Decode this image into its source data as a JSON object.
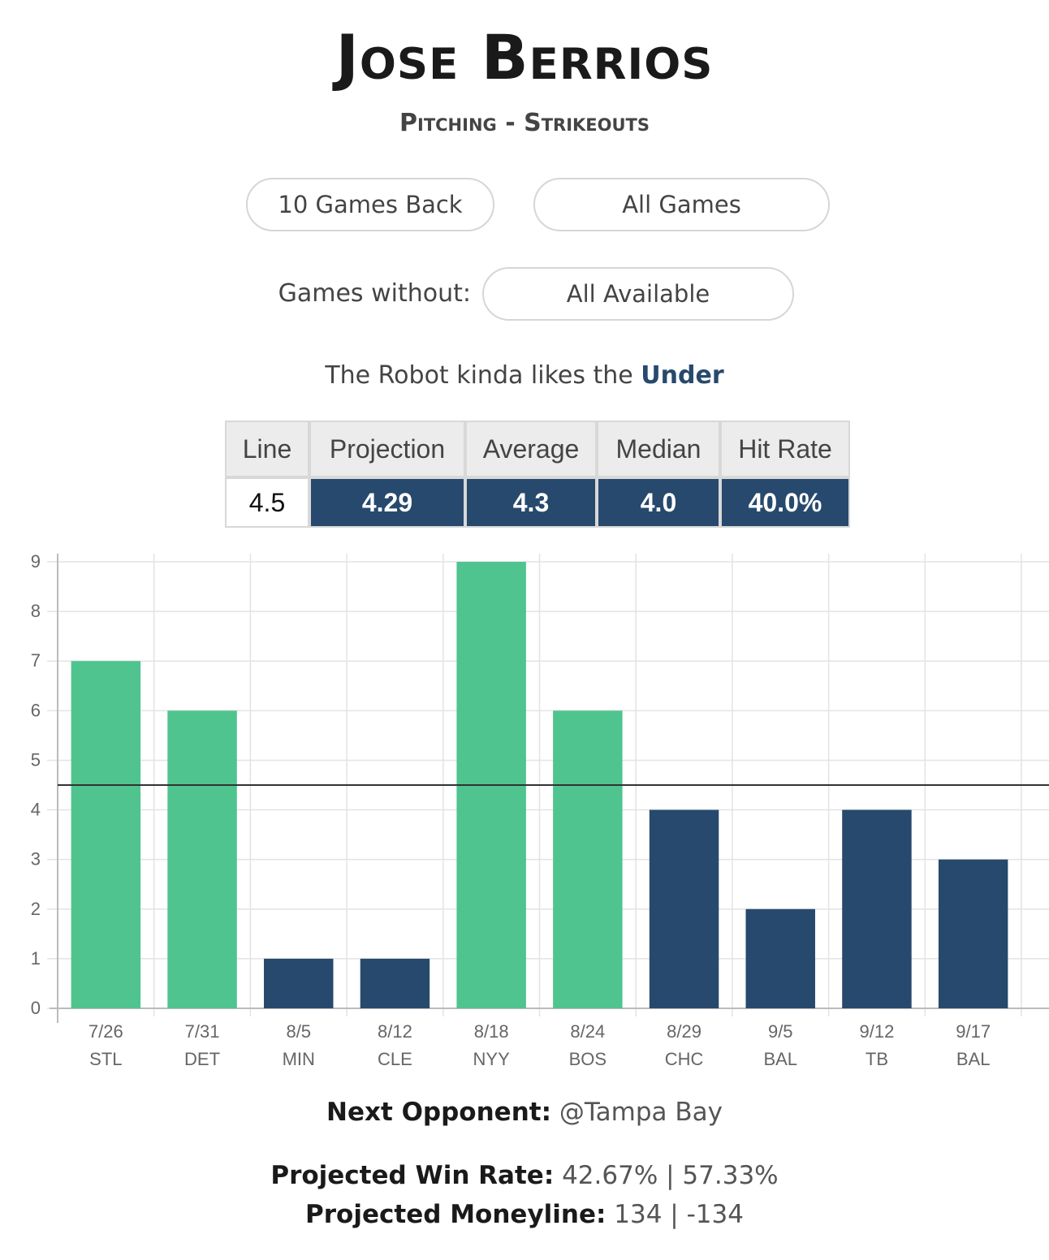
{
  "header": {
    "title": "Jose Berrios",
    "subtitle": "Pitching - Strikeouts"
  },
  "filters": {
    "range_button": "10 Games Back",
    "games_button": "All Games",
    "games_without_label": "Games without:",
    "games_without_value": "All Available"
  },
  "verdict": {
    "prefix": "The Robot kinda likes the",
    "pick": "Under"
  },
  "stats": {
    "headers": [
      "Line",
      "Projection",
      "Average",
      "Median",
      "Hit Rate"
    ],
    "values": [
      "4.5",
      "4.29",
      "4.3",
      "4.0",
      "40.0%"
    ]
  },
  "chart_data": {
    "type": "bar",
    "categories": [
      "7/26 STL",
      "7/31 DET",
      "8/5 MIN",
      "8/12 CLE",
      "8/18 NYY",
      "8/24 BOS",
      "8/29 CHC",
      "9/5 BAL",
      "9/12 TB",
      "9/17 BAL"
    ],
    "dates": [
      "7/26",
      "7/31",
      "8/5",
      "8/12",
      "8/18",
      "8/24",
      "8/29",
      "9/5",
      "9/12",
      "9/17"
    ],
    "opponents": [
      "STL",
      "DET",
      "MIN",
      "CLE",
      "NYY",
      "BOS",
      "CHC",
      "BAL",
      "TB",
      "BAL"
    ],
    "values": [
      7,
      6,
      1,
      1,
      9,
      6,
      4,
      2,
      4,
      3
    ],
    "reference_line": 4.5,
    "ylim": [
      0,
      9
    ],
    "yticks": [
      0,
      1,
      2,
      3,
      4,
      5,
      6,
      7,
      8,
      9
    ],
    "grid": true,
    "colors": {
      "over": "#4fc48e",
      "under": "#27496d",
      "line": "#333333",
      "grid": "#e3e3e3"
    }
  },
  "footer": {
    "next_opponent_label": "Next Opponent:",
    "next_opponent_value": "@Tampa Bay",
    "win_rate_label": "Projected Win Rate:",
    "win_rate_value": "42.67% | 57.33%",
    "moneyline_label": "Projected Moneyline:",
    "moneyline_value": "134 | -134"
  }
}
